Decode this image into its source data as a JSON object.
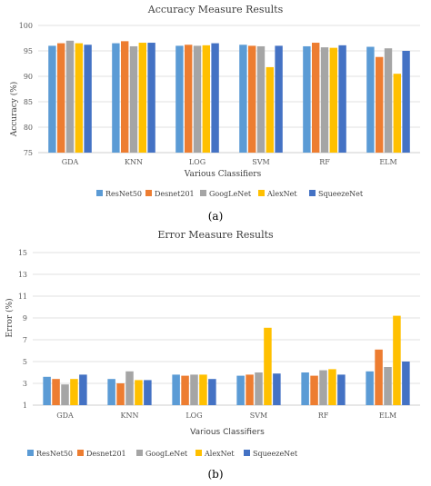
{
  "chart_data": [
    {
      "type": "bar",
      "title": "Accuracy Measure Results",
      "xlabel": "Various Classifiers",
      "ylabel": "Accuracy (%)",
      "ylim": [
        75,
        100
      ],
      "yticks": [
        75,
        80,
        85,
        90,
        95,
        100
      ],
      "grid": true,
      "legend_position": "bottom",
      "panel_label": "(a)",
      "categories": [
        "GDA",
        "KNN",
        "LOG",
        "SVM",
        "RF",
        "ELM"
      ],
      "series": [
        {
          "name": "ResNet50",
          "color": "#5b9bd5",
          "values": [
            96.0,
            96.5,
            96.0,
            96.2,
            95.9,
            95.8
          ]
        },
        {
          "name": "Desnet201",
          "color": "#ed7d31",
          "values": [
            96.5,
            96.9,
            96.2,
            96.0,
            96.6,
            93.8
          ]
        },
        {
          "name": "GoogLeNet",
          "color": "#a5a5a5",
          "values": [
            97.0,
            95.9,
            96.0,
            95.9,
            95.7,
            95.5
          ]
        },
        {
          "name": "AlexNet",
          "color": "#ffc000",
          "values": [
            96.5,
            96.6,
            96.1,
            91.8,
            95.6,
            90.5
          ]
        },
        {
          "name": "SqueezeNet",
          "color": "#4472c4",
          "values": [
            96.2,
            96.6,
            96.5,
            96.0,
            96.1,
            95.0
          ]
        }
      ]
    },
    {
      "type": "bar",
      "title": "Error Measure Results",
      "xlabel": "Various Classifiers",
      "ylabel": "Error (%)",
      "ylim": [
        1,
        15
      ],
      "yticks": [
        1,
        3,
        5,
        7,
        9,
        11,
        13,
        15
      ],
      "grid": true,
      "legend_position": "bottom",
      "panel_label": "(b)",
      "categories": [
        "GDA",
        "KNN",
        "LOG",
        "SVM",
        "RF",
        "ELM"
      ],
      "series": [
        {
          "name": "ResNet50",
          "color": "#5b9bd5",
          "values": [
            3.6,
            3.4,
            3.8,
            3.7,
            4.0,
            4.1
          ]
        },
        {
          "name": "Desnet201",
          "color": "#ed7d31",
          "values": [
            3.4,
            3.0,
            3.7,
            3.8,
            3.7,
            6.1
          ]
        },
        {
          "name": "GoogLeNet",
          "color": "#a5a5a5",
          "values": [
            2.9,
            4.1,
            3.8,
            4.0,
            4.2,
            4.5
          ]
        },
        {
          "name": "AlexNet",
          "color": "#ffc000",
          "values": [
            3.4,
            3.3,
            3.8,
            8.1,
            4.3,
            9.2
          ]
        },
        {
          "name": "SqueezeNet",
          "color": "#4472c4",
          "values": [
            3.8,
            3.3,
            3.4,
            3.9,
            3.8,
            5.0
          ]
        }
      ]
    }
  ]
}
